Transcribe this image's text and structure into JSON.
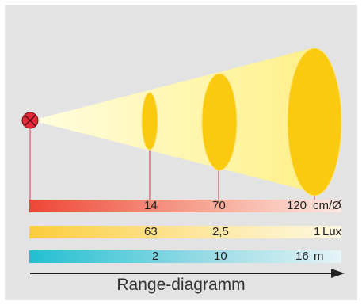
{
  "colors": {
    "background": "#e3e3e3",
    "beam": "#fff3a0",
    "ellipse": "#f9ca0f",
    "source": "#e32a3a",
    "guideline": "#d33a43",
    "bar_size": "#ef4a3c",
    "bar_lux": "#fbd14a",
    "bar_range": "#2ec3d4",
    "arrow": "#222222"
  },
  "source_icon": "cross-circle-icon",
  "bars": {
    "size": {
      "v1": "14",
      "v2": "70",
      "v3": "120",
      "unit": "cm/Ø"
    },
    "lux": {
      "v1": "63",
      "v2": "2,5",
      "v3": "1",
      "unit": "Lux"
    },
    "range": {
      "v1": "2",
      "v2": "10",
      "v3": "16",
      "unit": "m"
    }
  },
  "caption": "Range-diagramm"
}
